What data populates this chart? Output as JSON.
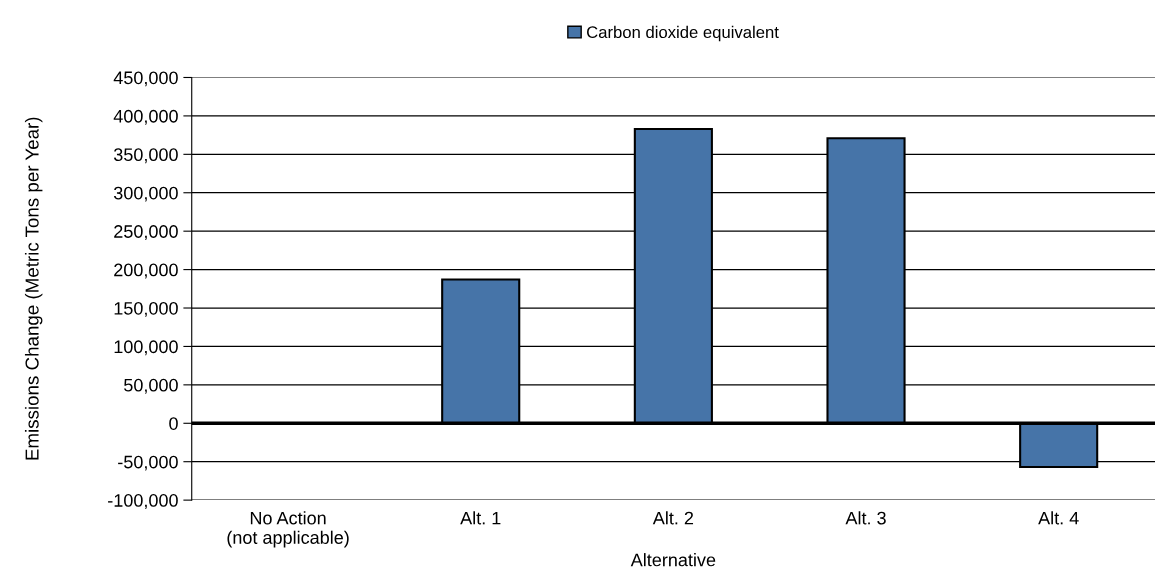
{
  "chart_data": {
    "type": "bar",
    "xlabel": "Alternative",
    "ylabel": "Emissions Change (Metric Tons per Year)",
    "categories": [
      "No Action\n(not applicable)",
      "Alt. 1",
      "Alt. 2",
      "Alt. 3",
      "Alt. 4"
    ],
    "series": [
      {
        "name": "Carbon dioxide equivalent",
        "color": "#4674a8",
        "values": [
          null,
          187000,
          383000,
          371000,
          -57000
        ]
      }
    ],
    "ylim": [
      -100000,
      450000
    ],
    "yticks": [
      {
        "value": -100000,
        "label": "-100,000"
      },
      {
        "value": -50000,
        "label": "-50,000"
      },
      0,
      {
        "value": 50000,
        "label": "50,000"
      },
      {
        "value": 100000,
        "label": "100,000"
      },
      {
        "value": 150000,
        "label": "150,000"
      },
      {
        "value": 200000,
        "label": "200,000"
      },
      {
        "value": 250000,
        "label": "250,000"
      },
      {
        "value": 300000,
        "label": "300,000"
      },
      {
        "value": 350000,
        "label": "350,000"
      },
      {
        "value": 400000,
        "label": "400,000"
      },
      {
        "value": 450000,
        "label": "450,000"
      }
    ],
    "ref_lines": [
      {
        "axis": "y",
        "value": 0,
        "color": "#000000"
      }
    ],
    "grid": "y",
    "legend": "top"
  }
}
